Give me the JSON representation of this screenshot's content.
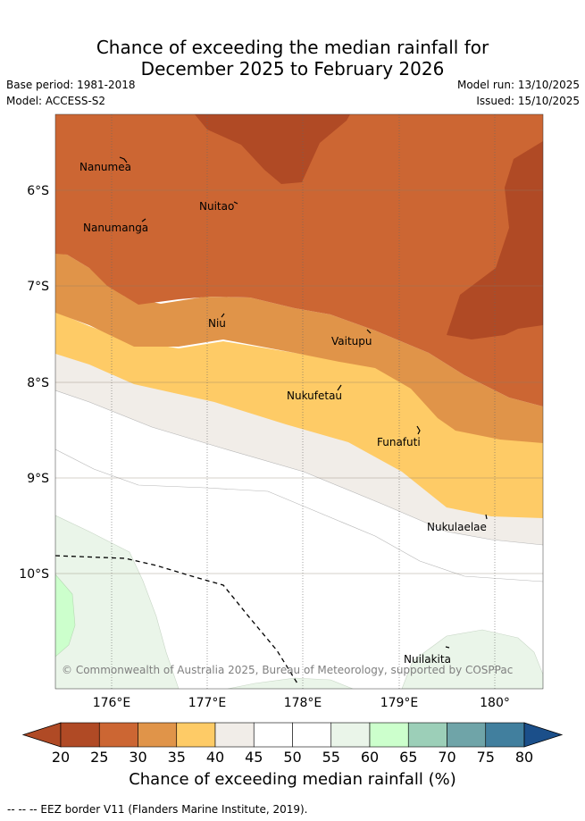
{
  "header": {
    "title_line1": "Chance of exceeding the median rainfall for",
    "title_line2": "December 2025 to February 2026",
    "base_period": "Base period: 1981-2018",
    "model": "Model: ACCESS-S2",
    "model_run": "Model run: 13/10/2025",
    "issued": "Issued: 15/10/2025"
  },
  "map": {
    "lat_labels": [
      "6°S",
      "7°S",
      "8°S",
      "9°S",
      "10°S"
    ],
    "lon_labels": [
      "176°E",
      "177°E",
      "178°E",
      "179°E",
      "180°"
    ],
    "places": [
      {
        "name": "Nanumea"
      },
      {
        "name": "Nuitao"
      },
      {
        "name": "Nanumanga"
      },
      {
        "name": "Niu"
      },
      {
        "name": "Vaitupu"
      },
      {
        "name": "Nukufetau"
      },
      {
        "name": "Funafuti"
      },
      {
        "name": "Nukulaelae"
      },
      {
        "name": "Nuilakita"
      }
    ],
    "copyright": "© Commonwealth of Australia 2025, Bureau of Meteorology, supported by COSPPac"
  },
  "colorbar": {
    "ticks": [
      "20",
      "25",
      "30",
      "35",
      "40",
      "45",
      "50",
      "55",
      "60",
      "65",
      "70",
      "75",
      "80"
    ],
    "colors": [
      "#b04a25",
      "#cc6633",
      "#e09449",
      "#fecb66",
      "#f1ede8",
      "#ffffff",
      "#ffffff",
      "#eaf5e9",
      "#ccffcc",
      "#9ccfb8",
      "#6fa4a8",
      "#417f9e"
    ],
    "low_color": "#b04a25",
    "high_color": "#1b4f8a",
    "title": "Chance of exceeding median rainfall (%)"
  },
  "legend": {
    "eez": "--  --  -- EEZ border V11 (Flanders Marine Institute, 2019)."
  }
}
